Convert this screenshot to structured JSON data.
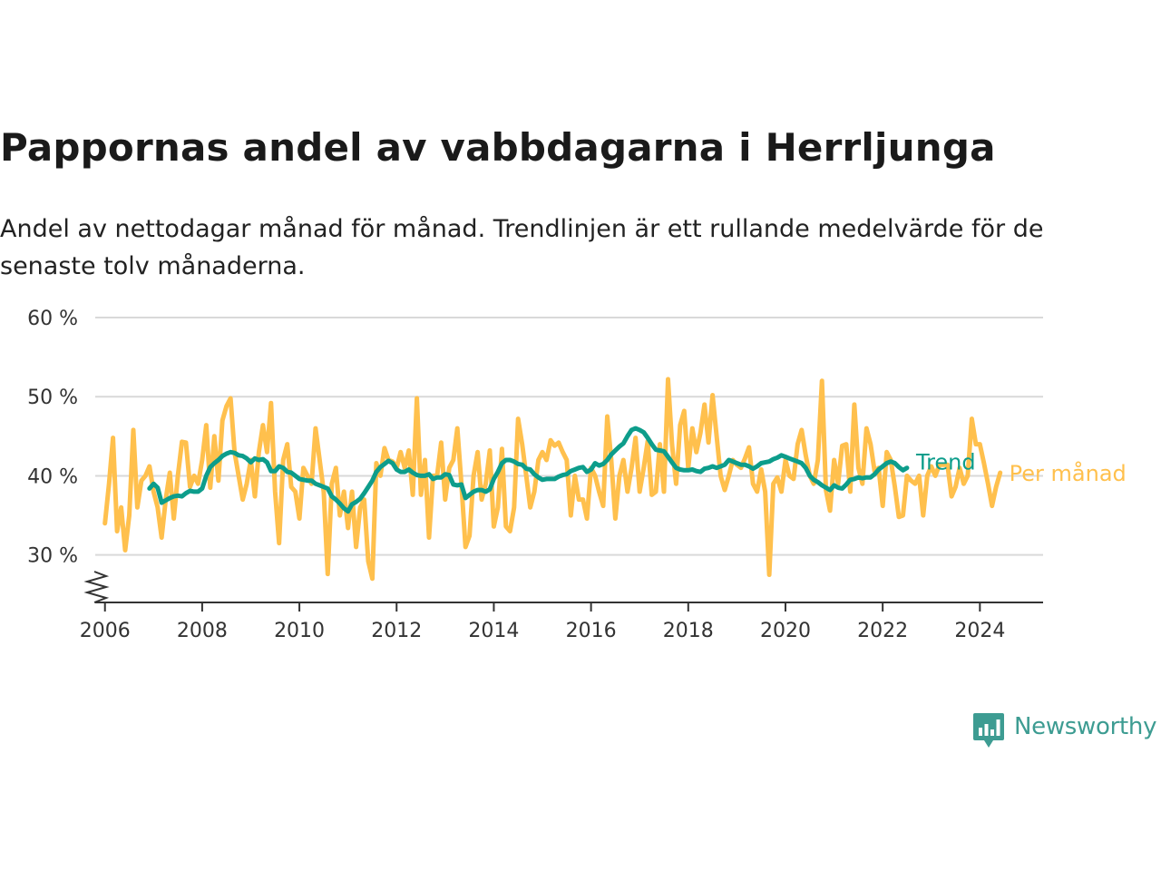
{
  "title": "Pappornas andel av vabbdagarna i Herrljunga",
  "subtitle": "Andel av nettodagar månad för månad. Trendlinjen är ett rullande medelvärde för de senaste tolv månaderna.",
  "brand": {
    "name": "Newsworthy",
    "icon": "bar-chart-speech-bubble-icon"
  },
  "colors": {
    "monthly": "#ffc04d",
    "trend": "#0d9d8b",
    "grid": "#d9d9d9",
    "axis": "#333333"
  },
  "chart_data": {
    "type": "line",
    "x_start": "2006-01",
    "x_step": "month",
    "xlim": [
      2005.8,
      2025.3
    ],
    "ylim": [
      24,
      60
    ],
    "ytick_values": [
      30,
      40,
      50,
      60
    ],
    "ytick_labels": [
      "30 %",
      "40 %",
      "50 %",
      "60 %"
    ],
    "xtick_values": [
      2006,
      2008,
      2010,
      2012,
      2014,
      2016,
      2018,
      2020,
      2022,
      2024
    ],
    "xtick_labels": [
      "2006",
      "2008",
      "2010",
      "2012",
      "2014",
      "2016",
      "2018",
      "2020",
      "2022",
      "2024"
    ],
    "axis_break": true,
    "grid": true,
    "legend": "inline-right",
    "series": [
      {
        "name": "Per månad",
        "start": "2006-01",
        "values": [
          34.0,
          39.0,
          44.8,
          33.0,
          36.0,
          30.6,
          35.0,
          45.8,
          36.0,
          39.4,
          40.0,
          41.2,
          38.0,
          36.0,
          32.2,
          37.0,
          40.4,
          34.6,
          40.0,
          44.3,
          44.2,
          38.6,
          40.0,
          39.0,
          42.0,
          46.4,
          38.5,
          45.0,
          39.4,
          47.0,
          48.8,
          49.8,
          43.0,
          40.0,
          37.0,
          39.0,
          42.0,
          37.4,
          43.0,
          46.4,
          43.0,
          49.2,
          38.0,
          31.5,
          42.0,
          44.0,
          38.6,
          38.0,
          34.6,
          41.0,
          40.0,
          39.0,
          46.0,
          42.0,
          38.0,
          27.6,
          39.0,
          41.0,
          35.0,
          38.0,
          33.4,
          38.0,
          31.0,
          36.0,
          37.0,
          29.2,
          27.0,
          41.6,
          40.0,
          43.5,
          42.0,
          41.8,
          41.0,
          43.0,
          41.0,
          43.2,
          37.6,
          49.8,
          37.6,
          42.0,
          32.2,
          40.0,
          40.0,
          44.2,
          37.0,
          41.0,
          42.0,
          46.0,
          39.0,
          31.0,
          32.4,
          40.0,
          43.0,
          37.0,
          39.0,
          43.2,
          33.6,
          36.0,
          43.4,
          33.6,
          33.0,
          36.0,
          47.2,
          44.0,
          40.0,
          36.0,
          38.0,
          42.0,
          43.0,
          42.0,
          44.5,
          43.8,
          44.2,
          43.0,
          42.0,
          35.0,
          40.0,
          37.0,
          37.0,
          34.6,
          41.0,
          40.0,
          38.0,
          36.2,
          47.5,
          42.0,
          34.6,
          40.0,
          42.0,
          38.0,
          41.0,
          44.8,
          38.0,
          41.0,
          44.4,
          37.6,
          38.0,
          44.0,
          38.0,
          52.2,
          44.0,
          39.0,
          46.4,
          48.2,
          41.0,
          46.0,
          43.0,
          45.4,
          49.0,
          44.2,
          50.2,
          45.0,
          40.0,
          38.2,
          40.0,
          42.0,
          41.4,
          41.0,
          42.2,
          43.6,
          39.0,
          38.0,
          40.8,
          38.0,
          27.5,
          39.0,
          39.8,
          38.0,
          42.0,
          40.0,
          39.6,
          44.0,
          45.8,
          42.6,
          40.0,
          39.0,
          42.0,
          52.0,
          38.2,
          35.6,
          42.0,
          39.0,
          43.8,
          44.0,
          38.0,
          49.0,
          41.0,
          39.0,
          46.0,
          44.0,
          40.6,
          41.0,
          36.2,
          43.0,
          42.0,
          38.6,
          34.8,
          35.0,
          40.0,
          39.4,
          39.0,
          40.0,
          35.0,
          40.0,
          41.2,
          40.0,
          41.4,
          41.4,
          41.4,
          37.4,
          38.6,
          41.0,
          39.0,
          40.0,
          47.2,
          44.0,
          44.0,
          41.6,
          39.0,
          36.2,
          38.6,
          40.4
        ]
      },
      {
        "name": "Trend",
        "start": "2006-12",
        "values": [
          38.4,
          39.0,
          38.5,
          36.6,
          36.9,
          37.2,
          37.4,
          37.5,
          37.4,
          37.8,
          38.1,
          38.0,
          38.0,
          38.4,
          40.0,
          41.1,
          41.6,
          42.0,
          42.5,
          42.8,
          43.0,
          42.9,
          42.6,
          42.5,
          42.2,
          41.7,
          42.2,
          42.0,
          42.1,
          41.7,
          40.6,
          40.6,
          41.2,
          41.0,
          40.5,
          40.4,
          40.0,
          39.6,
          39.5,
          39.4,
          39.4,
          39.0,
          38.8,
          38.6,
          38.4,
          37.4,
          37.0,
          36.5,
          35.9,
          35.5,
          36.4,
          36.7,
          37.1,
          37.8,
          38.6,
          39.4,
          40.5,
          41.1,
          41.5,
          41.9,
          41.6,
          40.8,
          40.5,
          40.5,
          40.8,
          40.4,
          40.1,
          40.0,
          40.0,
          40.2,
          39.6,
          39.8,
          39.8,
          40.2,
          40.1,
          38.9,
          38.8,
          38.9,
          37.2,
          37.6,
          38.0,
          38.2,
          38.2,
          38.0,
          38.3,
          39.6,
          40.5,
          41.6,
          42.0,
          42.0,
          41.8,
          41.5,
          41.4,
          40.9,
          40.8,
          40.2,
          39.8,
          39.5,
          39.6,
          39.6,
          39.6,
          39.9,
          40.1,
          40.2,
          40.6,
          40.8,
          41.0,
          41.1,
          40.5,
          40.8,
          41.6,
          41.3,
          41.5,
          42.0,
          42.7,
          43.2,
          43.7,
          44.1,
          45.0,
          45.8,
          46.0,
          45.8,
          45.5,
          44.8,
          44.0,
          43.3,
          43.2,
          43.1,
          42.4,
          41.7,
          41.0,
          40.8,
          40.7,
          40.7,
          40.8,
          40.6,
          40.5,
          40.9,
          41.0,
          41.2,
          41.0,
          41.2,
          41.4,
          42.0,
          41.8,
          41.6,
          41.4,
          41.4,
          41.2,
          40.9,
          41.2,
          41.6,
          41.7,
          41.8,
          42.1,
          42.3,
          42.6,
          42.4,
          42.2,
          42.0,
          41.8,
          41.6,
          41.0,
          40.0,
          39.5,
          39.2,
          38.8,
          38.5,
          38.2,
          38.8,
          38.5,
          38.4,
          38.9,
          39.5,
          39.6,
          39.8,
          39.7,
          39.8,
          39.8,
          40.2,
          40.8,
          41.2,
          41.6,
          41.8,
          41.6,
          41.1,
          40.7,
          41.0
        ]
      }
    ]
  }
}
